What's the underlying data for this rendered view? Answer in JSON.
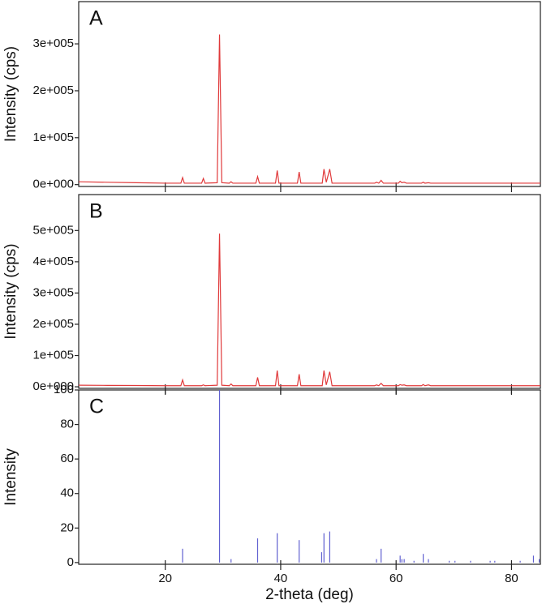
{
  "chart_data": [
    {
      "type": "line",
      "panel_label": "A",
      "ylabel": "Intensity (cps)",
      "color": "#e0393a",
      "xlim": [
        5,
        85
      ],
      "xticks": [
        20,
        40,
        60,
        80
      ],
      "ylim": [
        -4000,
        390000
      ],
      "yticks": [
        {
          "value": 0,
          "label": "0e+000"
        },
        {
          "value": 100000,
          "label": "1e+005"
        },
        {
          "value": 200000,
          "label": "2e+005"
        },
        {
          "value": 300000,
          "label": "3e+005"
        }
      ],
      "x": [
        5,
        10,
        15,
        20,
        22.7,
        23.0,
        23.3,
        26.3,
        26.6,
        26.9,
        29.0,
        29.4,
        29.8,
        31.1,
        31.4,
        31.7,
        35.7,
        36.0,
        36.3,
        39.1,
        39.4,
        39.7,
        42.9,
        43.2,
        43.5,
        47.2,
        47.5,
        47.9,
        48.5,
        48.9,
        56.3,
        56.6,
        57.0,
        57.4,
        57.8,
        60.4,
        60.7,
        61.0,
        61.4,
        61.8,
        64.4,
        64.7,
        65.0,
        65.6,
        66.0,
        70,
        75,
        80,
        85
      ],
      "values": [
        6000,
        5000,
        4000,
        3000,
        3000,
        15000,
        3000,
        3000,
        13000,
        3000,
        4000,
        320000,
        4000,
        3000,
        6000,
        3000,
        3000,
        17000,
        3000,
        3000,
        30000,
        3000,
        3000,
        27000,
        3000,
        3000,
        33000,
        5000,
        33000,
        3000,
        3000,
        5000,
        3000,
        9000,
        3000,
        3000,
        7000,
        4000,
        5000,
        3000,
        3000,
        5000,
        3000,
        4000,
        3000,
        3000,
        3000,
        3000,
        3000
      ]
    },
    {
      "type": "line",
      "panel_label": "B",
      "ylabel": "Intensity (cps)",
      "color": "#e0393a",
      "xlim": [
        5,
        85
      ],
      "xticks": [
        20,
        40,
        60,
        80
      ],
      "ylim": [
        -5000,
        615000
      ],
      "yticks": [
        {
          "value": 0,
          "label": "0e+000"
        },
        {
          "value": 100000,
          "label": "1e+005"
        },
        {
          "value": 200000,
          "label": "2e+005"
        },
        {
          "value": 300000,
          "label": "3e+005"
        },
        {
          "value": 400000,
          "label": "4e+005"
        },
        {
          "value": 500000,
          "label": "5e+005"
        }
      ],
      "x": [
        5,
        10,
        15,
        20,
        22.7,
        23.0,
        23.3,
        26.3,
        26.6,
        26.9,
        29.0,
        29.4,
        29.8,
        31.1,
        31.4,
        31.7,
        35.7,
        36.0,
        36.3,
        39.1,
        39.4,
        39.7,
        42.9,
        43.2,
        43.5,
        47.2,
        47.5,
        47.9,
        48.5,
        48.9,
        56.3,
        56.6,
        57.0,
        57.4,
        57.8,
        60.4,
        60.7,
        61.0,
        61.4,
        61.8,
        64.4,
        64.7,
        65.0,
        65.6,
        66.0,
        70,
        75,
        80,
        85
      ],
      "values": [
        5000,
        4500,
        4000,
        3500,
        3500,
        22000,
        3500,
        3500,
        6000,
        3500,
        5000,
        490000,
        5000,
        3500,
        9000,
        3500,
        3500,
        30000,
        3500,
        3500,
        52000,
        3500,
        3500,
        40000,
        3500,
        3500,
        52000,
        6000,
        48000,
        3500,
        3500,
        6000,
        3500,
        11000,
        3500,
        3500,
        7000,
        5000,
        6000,
        3500,
        3500,
        7000,
        3500,
        6000,
        3500,
        3500,
        3500,
        3500,
        3500
      ]
    },
    {
      "type": "bar",
      "panel_label": "C",
      "ylabel": "Intensity",
      "xlabel": "2-theta (deg)",
      "color": "#6060d0",
      "xlim": [
        5,
        85
      ],
      "xticks": [
        20,
        40,
        60,
        80
      ],
      "ylim": [
        -1,
        100
      ],
      "yticks": [
        0,
        20,
        40,
        60,
        80,
        100
      ],
      "x": [
        23.0,
        29.4,
        31.4,
        36.0,
        39.4,
        43.2,
        47.1,
        47.5,
        48.5,
        56.6,
        57.4,
        60.7,
        61.0,
        61.4,
        63.1,
        64.7,
        65.6,
        69.2,
        70.2,
        72.9,
        76.3,
        77.1,
        81.5,
        83.8,
        84.8
      ],
      "values": [
        8,
        100,
        2,
        14,
        17,
        13,
        6,
        17,
        18,
        2,
        8,
        4,
        2,
        2,
        1,
        5,
        2,
        1,
        1,
        1,
        1,
        1,
        1,
        4,
        2
      ]
    }
  ]
}
